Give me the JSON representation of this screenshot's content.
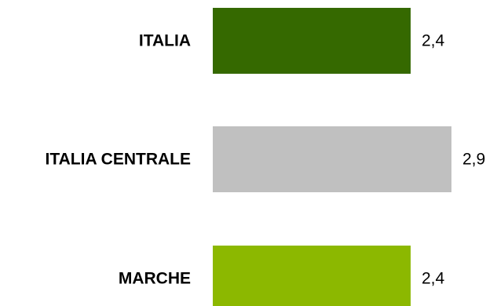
{
  "chart_data": {
    "type": "bar",
    "orientation": "horizontal",
    "categories": [
      "ITALIA",
      "ITALIA CENTRALE",
      "MARCHE"
    ],
    "values": [
      2.4,
      2.9,
      2.4
    ],
    "value_labels": [
      "2,4",
      "2,9",
      "2,4"
    ],
    "colors": [
      "#356900",
      "#c0c0c0",
      "#8cb800"
    ],
    "xlim": [
      0,
      2.9
    ],
    "grid": false,
    "legend": "none"
  }
}
